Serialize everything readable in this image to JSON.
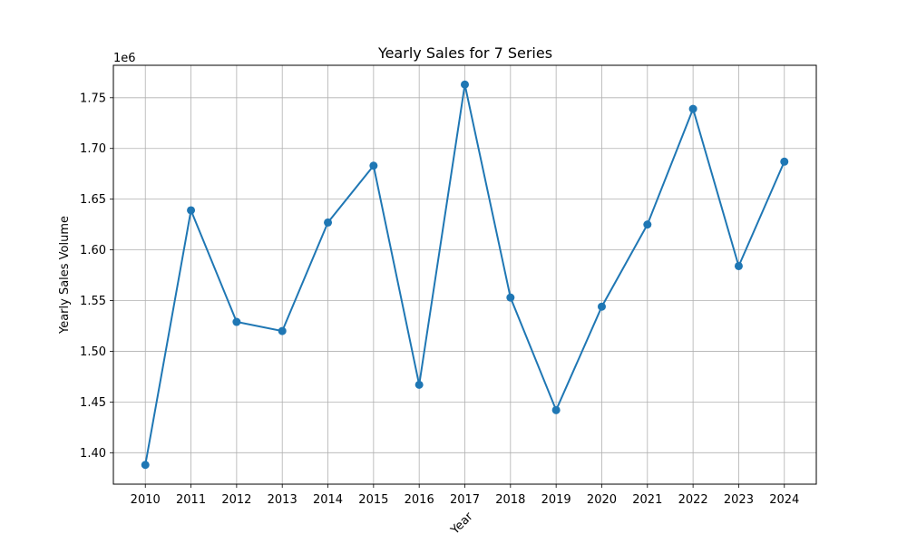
{
  "chart_data": {
    "type": "line",
    "title": "Yearly Sales for 7 Series",
    "xlabel": "Year",
    "ylabel": "Yearly Sales Volume",
    "y_offset_label": "1e6",
    "grid": true,
    "x": [
      2010,
      2011,
      2012,
      2013,
      2014,
      2015,
      2016,
      2017,
      2018,
      2019,
      2020,
      2021,
      2022,
      2023,
      2024
    ],
    "x_tick_labels": [
      "2010",
      "2011",
      "2012",
      "2013",
      "2014",
      "2015",
      "2016",
      "2017",
      "2018",
      "2019",
      "2020",
      "2021",
      "2022",
      "2023",
      "2024"
    ],
    "series": [
      {
        "values": [
          1388000,
          1639000,
          1529000,
          1520000,
          1627000,
          1683000,
          1467000,
          1763000,
          1553000,
          1442000,
          1544000,
          1625000,
          1739000,
          1584000,
          1687000
        ],
        "color": "#1f77b4"
      }
    ],
    "y_ticks": [
      1.4,
      1.45,
      1.5,
      1.55,
      1.6,
      1.65,
      1.7,
      1.75
    ],
    "y_tick_labels": [
      "1.40",
      "1.45",
      "1.50",
      "1.55",
      "1.60",
      "1.65",
      "1.70",
      "1.75"
    ],
    "ylim": [
      1369000,
      1782000
    ],
    "xlim": [
      2009.3,
      2024.7
    ],
    "colors": {
      "line": "#1f77b4",
      "grid": "#b0b0b0",
      "axis": "#000000"
    }
  }
}
